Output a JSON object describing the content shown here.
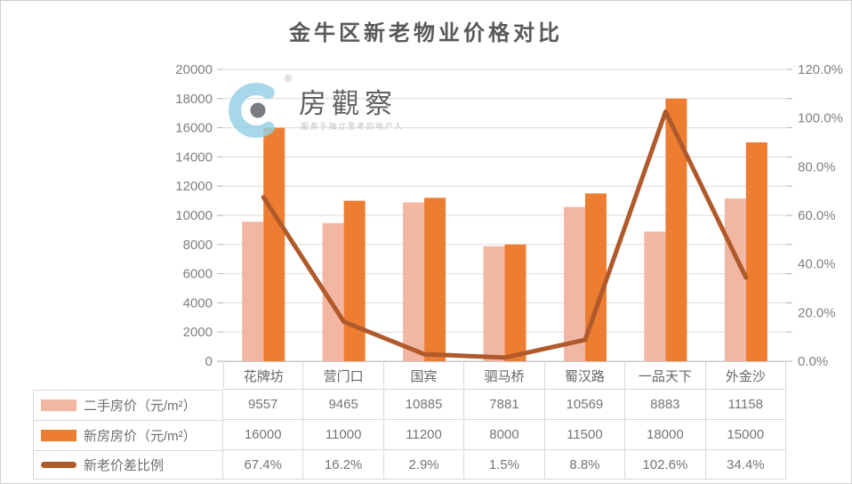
{
  "title": "金牛区新老物业价格对比",
  "watermark": {
    "brand": "房觀察",
    "registered_mark": "®",
    "tagline": "服务于独立思考的地产人"
  },
  "colors": {
    "bar_secondhand": "#F2B7A3",
    "bar_new": "#ED7D31",
    "ratio_line": "#B0592B",
    "grid": "#DCDCDC",
    "axis_line": "#C4C4C4",
    "tick": "#B3B3B3",
    "axis_text": "#808080",
    "title_text": "#595959",
    "table_border": "#D9D9D9",
    "watermark_blue": "#93CFE6",
    "watermark_dot": "#5D6166"
  },
  "chart_data": {
    "type": "bar-line-combo",
    "title": "金牛区新老物业价格对比",
    "categories": [
      "花牌坊",
      "营门口",
      "国宾",
      "驷马桥",
      "蜀汉路",
      "一品天下",
      "外金沙"
    ],
    "series": [
      {
        "name": "二手房价（元/m²）",
        "type": "bar",
        "axis": "left",
        "values": [
          9557,
          9465,
          10885,
          7881,
          10569,
          8883,
          11158
        ]
      },
      {
        "name": "新房房价（元/m²）",
        "type": "bar",
        "axis": "left",
        "values": [
          16000,
          11000,
          11200,
          8000,
          11500,
          18000,
          15000
        ]
      },
      {
        "name": "新老价差比例",
        "type": "line",
        "axis": "right",
        "values": [
          67.4,
          16.2,
          2.9,
          1.5,
          8.8,
          102.6,
          34.4
        ],
        "display": [
          "67.4%",
          "16.2%",
          "2.9%",
          "1.5%",
          "8.8%",
          "102.6%",
          "34.4%"
        ]
      }
    ],
    "axis_left": {
      "min": 0,
      "max": 20000,
      "step": 2000
    },
    "axis_right": {
      "min": 0,
      "max": 120,
      "step": 20,
      "suffix": "%",
      "decimals": 1
    },
    "grid": "horizontal-only",
    "legend_position": "table-left"
  }
}
